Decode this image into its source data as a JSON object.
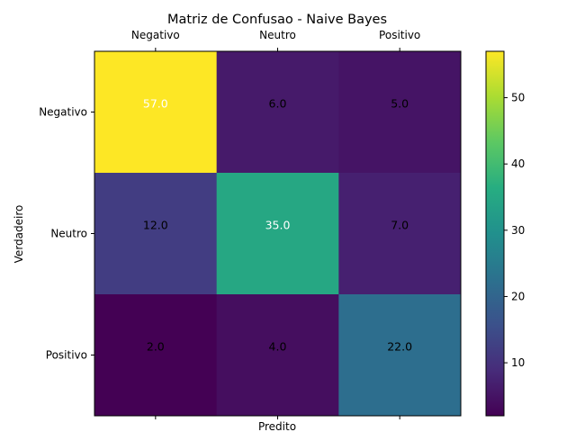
{
  "chart_data": {
    "type": "heatmap",
    "title": "Matriz de Confusao - Naive Bayes",
    "xlabel": "Predito",
    "ylabel": "Verdadeiro",
    "x_categories": [
      "Negativo",
      "Neutro",
      "Positivo"
    ],
    "y_categories": [
      "Negativo",
      "Neutro",
      "Positivo"
    ],
    "values": [
      [
        57,
        6,
        5
      ],
      [
        12,
        35,
        7
      ],
      [
        2,
        4,
        22
      ]
    ],
    "cell_labels": [
      [
        "57.0",
        "6.0",
        "5.0"
      ],
      [
        "12.0",
        "35.0",
        "7.0"
      ],
      [
        "2.0",
        "4.0",
        "22.0"
      ]
    ],
    "colormap": "viridis",
    "color_range": [
      2,
      57
    ],
    "colorbar_ticks": [
      10,
      20,
      30,
      40,
      50
    ],
    "colorbar_tick_labels": [
      "10",
      "20",
      "30",
      "40",
      "50"
    ],
    "x_tick_position": "top",
    "grid": false
  }
}
